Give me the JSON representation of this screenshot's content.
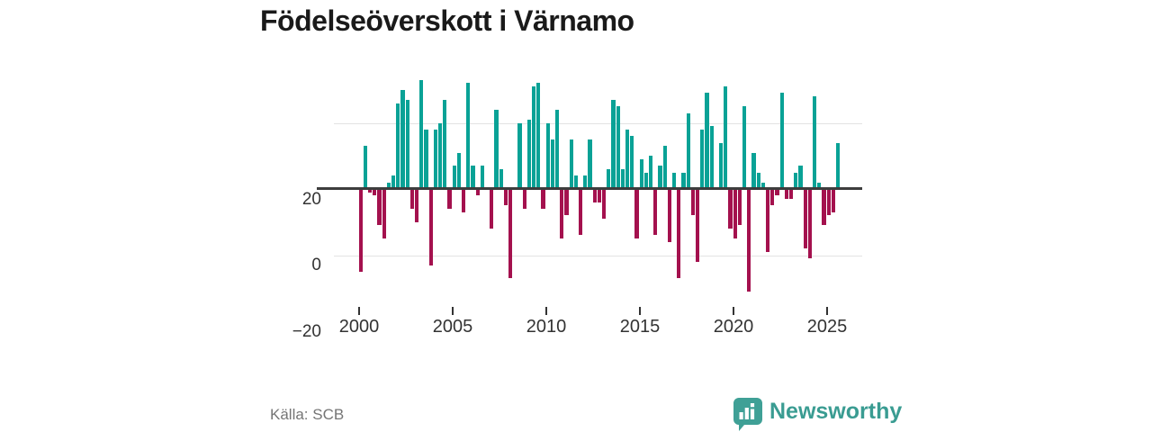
{
  "title": "Födelseöverskott i Värnamo",
  "source": "Källa: SCB",
  "brand": {
    "name": "Newsworthy",
    "color": "#3a9c92",
    "icon_color": "#3fa096",
    "icon": "speech-bubble-bar-chart"
  },
  "chart_data": {
    "type": "bar",
    "title": "Födelseöverskott i Värnamo",
    "frequency": "quarterly",
    "xlabel": "",
    "ylabel": "",
    "grid": "horizontal",
    "x_axis": {
      "tick_labels": [
        "2000",
        "2005",
        "2010",
        "2015",
        "2020",
        "2025"
      ]
    },
    "y_axis": {
      "tick_labels": [
        "20",
        "0",
        "−20"
      ],
      "tick_values": [
        20,
        0,
        -20
      ],
      "range": [
        -33,
        34
      ]
    },
    "positive_color": "#09a296",
    "negative_color": "#a4114e",
    "series_by_year": [
      {
        "year": 2000,
        "values": [
          -25,
          13,
          -1,
          -2
        ]
      },
      {
        "year": 2001,
        "values": [
          -11,
          -15,
          2,
          4
        ]
      },
      {
        "year": 2002,
        "values": [
          26,
          30,
          27,
          -6
        ]
      },
      {
        "year": 2003,
        "values": [
          -10,
          33,
          18,
          -23
        ]
      },
      {
        "year": 2004,
        "values": [
          18,
          20,
          27,
          -6
        ]
      },
      {
        "year": 2005,
        "values": [
          7,
          11,
          -7,
          32
        ]
      },
      {
        "year": 2006,
        "values": [
          7,
          -2,
          7,
          0
        ]
      },
      {
        "year": 2007,
        "values": [
          -12,
          24,
          6,
          -5
        ]
      },
      {
        "year": 2008,
        "values": [
          -27,
          0,
          20,
          -6
        ]
      },
      {
        "year": 2009,
        "values": [
          21,
          31,
          32,
          -6
        ]
      },
      {
        "year": 2010,
        "values": [
          20,
          15,
          24,
          -15
        ]
      },
      {
        "year": 2011,
        "values": [
          -8,
          15,
          4,
          -14
        ]
      },
      {
        "year": 2012,
        "values": [
          4,
          15,
          -4,
          -4
        ]
      },
      {
        "year": 2013,
        "values": [
          -9,
          6,
          27,
          25
        ]
      },
      {
        "year": 2014,
        "values": [
          6,
          18,
          16,
          -15
        ]
      },
      {
        "year": 2015,
        "values": [
          9,
          5,
          10,
          -14
        ]
      },
      {
        "year": 2016,
        "values": [
          7,
          13,
          -16,
          5
        ]
      },
      {
        "year": 2017,
        "values": [
          -27,
          5,
          23,
          -8
        ]
      },
      {
        "year": 2018,
        "values": [
          -22,
          18,
          29,
          19
        ]
      },
      {
        "year": 2019,
        "values": [
          0,
          14,
          31,
          -12
        ]
      },
      {
        "year": 2020,
        "values": [
          -15,
          -11,
          25,
          -31
        ]
      },
      {
        "year": 2021,
        "values": [
          11,
          5,
          2,
          -19
        ]
      },
      {
        "year": 2022,
        "values": [
          -5,
          -2,
          29,
          -3
        ]
      },
      {
        "year": 2023,
        "values": [
          -3,
          5,
          7,
          -18
        ]
      },
      {
        "year": 2024,
        "values": [
          -21,
          28,
          2,
          -11
        ]
      },
      {
        "year": 2025,
        "values": [
          -8,
          -7,
          14
        ]
      }
    ]
  }
}
